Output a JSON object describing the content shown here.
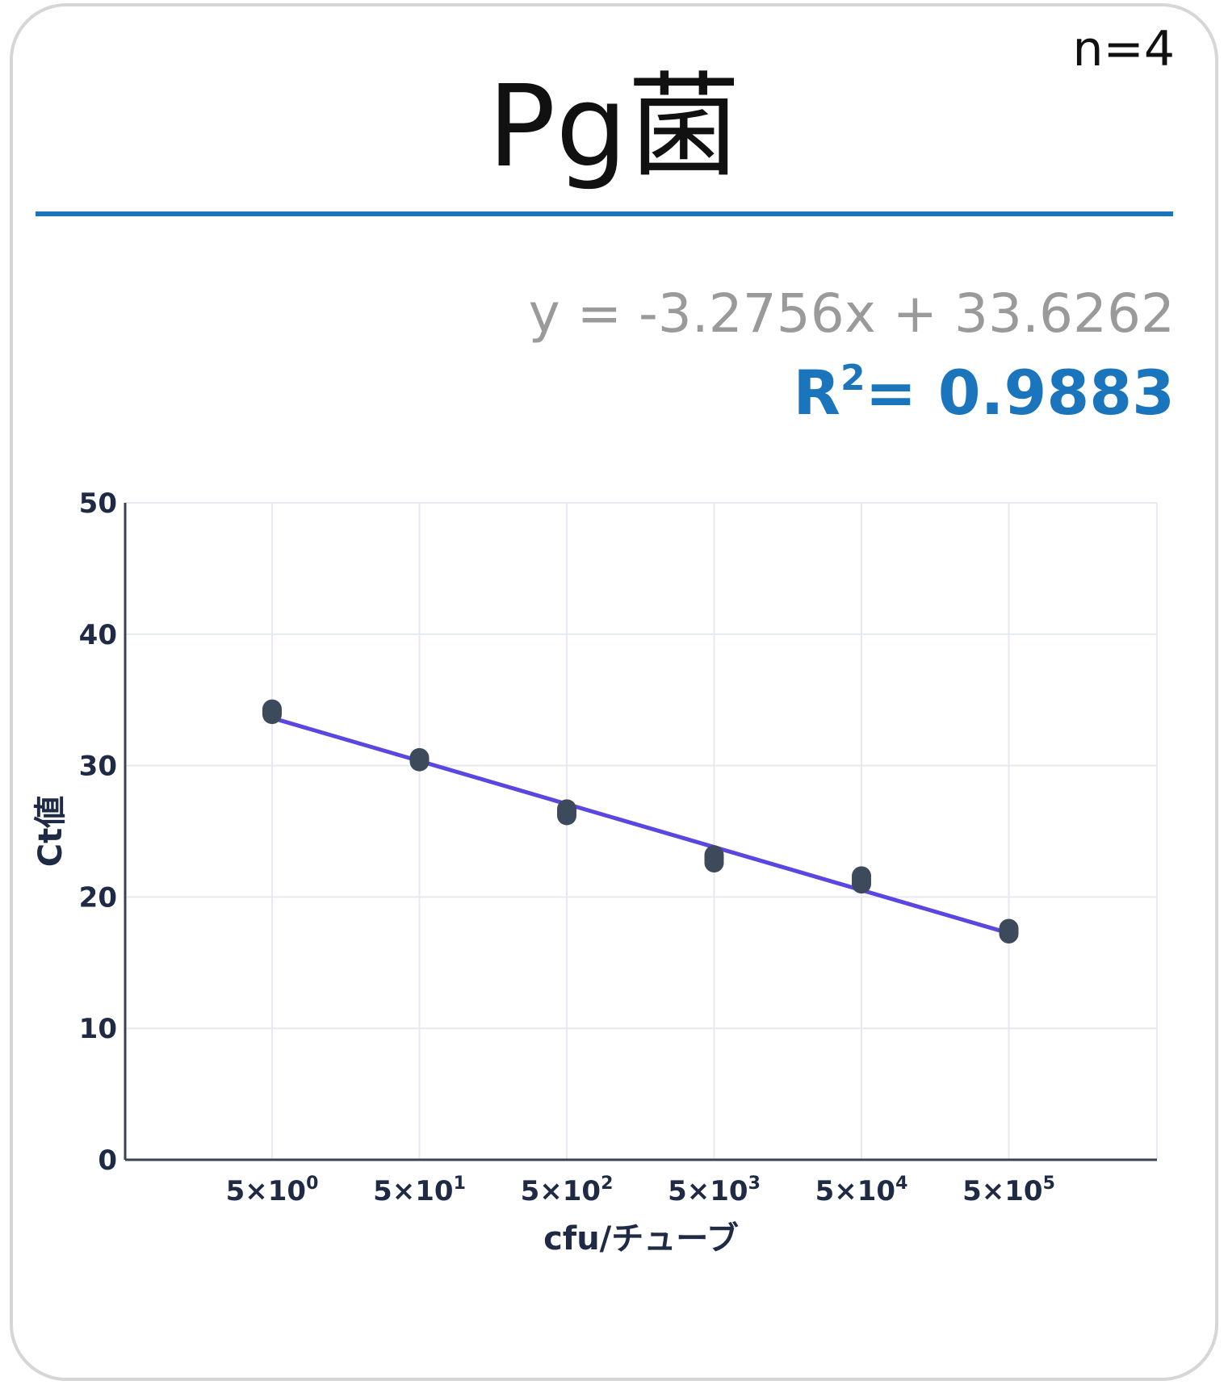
{
  "card": {
    "n_label": "n=4",
    "title": "Pg菌",
    "equation": "y = -3.2756x + 33.6262",
    "r2_label": "R",
    "r2_sup": "2",
    "r2_value": "= 0.9883"
  },
  "colors": {
    "divider": "#1b75bc",
    "r2": "#1b75bc",
    "equation": "#9a9a9a",
    "fit_line": "#5a46e0",
    "points": "#3d4a5c",
    "grid": "#e6e9ef",
    "axis": "#3a4255"
  },
  "chart_data": {
    "type": "scatter",
    "xlabel": "cfu/チューブ",
    "ylabel": "Ct値",
    "ylim": [
      0,
      50
    ],
    "yticks": [
      "0",
      "10",
      "20",
      "30",
      "40",
      "50"
    ],
    "categories": [
      {
        "base": "5×10",
        "exp": "0"
      },
      {
        "base": "5×10",
        "exp": "1"
      },
      {
        "base": "5×10",
        "exp": "2"
      },
      {
        "base": "5×10",
        "exp": "3"
      },
      {
        "base": "5×10",
        "exp": "4"
      },
      {
        "base": "5×10",
        "exp": "5"
      }
    ],
    "points": [
      {
        "x": 0,
        "y": 34.3
      },
      {
        "x": 0,
        "y": 34.0
      },
      {
        "x": 0,
        "y": 34.2
      },
      {
        "x": 0,
        "y": 33.9
      },
      {
        "x": 1,
        "y": 30.6
      },
      {
        "x": 1,
        "y": 30.3
      },
      {
        "x": 1,
        "y": 30.5
      },
      {
        "x": 1,
        "y": 30.4
      },
      {
        "x": 2,
        "y": 26.7
      },
      {
        "x": 2,
        "y": 26.2
      },
      {
        "x": 2,
        "y": 26.5
      },
      {
        "x": 2,
        "y": 26.3
      },
      {
        "x": 3,
        "y": 23.2
      },
      {
        "x": 3,
        "y": 22.6
      },
      {
        "x": 3,
        "y": 23.0
      },
      {
        "x": 3,
        "y": 22.8
      },
      {
        "x": 4,
        "y": 21.6
      },
      {
        "x": 4,
        "y": 21.0
      },
      {
        "x": 4,
        "y": 21.4
      },
      {
        "x": 4,
        "y": 21.2
      },
      {
        "x": 5,
        "y": 17.6
      },
      {
        "x": 5,
        "y": 17.2
      },
      {
        "x": 5,
        "y": 17.5
      },
      {
        "x": 5,
        "y": 17.3
      }
    ],
    "fit": {
      "slope": -3.2756,
      "intercept": 33.6262
    },
    "grid": true
  }
}
